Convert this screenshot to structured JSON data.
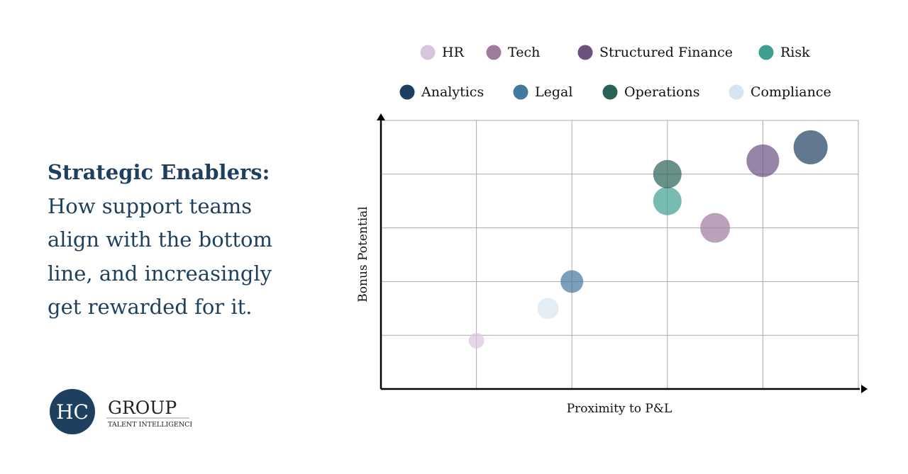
{
  "headline": {
    "bold": "Strategic Enablers:",
    "text": "How support teams align with the bottom line, and increasingly get rewarded for it."
  },
  "logo": {
    "monogram": "HC",
    "name": "GROUP",
    "tagline": "TALENT INTELLIGENCE"
  },
  "chart_data": {
    "type": "scatter",
    "subtype": "bubble",
    "title": "",
    "xlabel": "Proximity to P&L",
    "ylabel": "Bonus Potential",
    "xlim": [
      0,
      5
    ],
    "ylim": [
      0,
      5
    ],
    "grid": true,
    "tick_labels": false,
    "legend_position": "top",
    "series": [
      {
        "name": "HR",
        "color": "#d8c4dc",
        "x": 1,
        "y": 0.9,
        "size": 11
      },
      {
        "name": "Tech",
        "color": "#9e7a9e",
        "x": 3.5,
        "y": 3,
        "size": 21
      },
      {
        "name": "Structured Finance",
        "color": "#6b5080",
        "x": 4,
        "y": 4.25,
        "size": 23
      },
      {
        "name": "Risk",
        "color": "#3e9e90",
        "x": 3,
        "y": 3.5,
        "size": 20
      },
      {
        "name": "Analytics",
        "color": "#1e3f5e",
        "x": 4.5,
        "y": 4.5,
        "size": 24
      },
      {
        "name": "Legal",
        "color": "#44789e",
        "x": 2,
        "y": 2,
        "size": 16
      },
      {
        "name": "Operations",
        "color": "#2a6258",
        "x": 3,
        "y": 4,
        "size": 20
      },
      {
        "name": "Compliance",
        "color": "#d8e4ef",
        "x": 1.75,
        "y": 1.5,
        "size": 15
      }
    ]
  }
}
